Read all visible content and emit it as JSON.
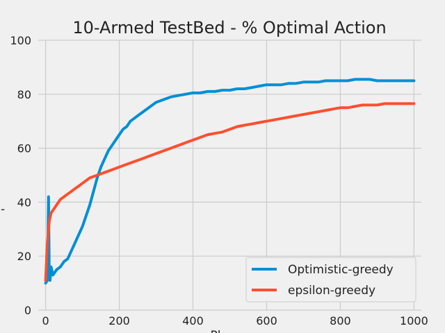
{
  "chart_data": {
    "type": "line",
    "title": "10-Armed TestBed - % Optimal Action",
    "xlabel": "Pl",
    "ylabel": "-",
    "xlim": [
      -20,
      1020
    ],
    "ylim": [
      0,
      100
    ],
    "xticks": [
      0,
      200,
      400,
      600,
      800,
      1000
    ],
    "yticks": [
      0,
      20,
      40,
      60,
      80,
      100
    ],
    "grid": true,
    "legend_position": "lower-right",
    "series": [
      {
        "name": "Optimistic-greedy",
        "color": "#008fd5",
        "x": [
          0,
          5,
          8,
          10,
          12,
          15,
          20,
          30,
          40,
          50,
          60,
          70,
          80,
          90,
          100,
          110,
          120,
          130,
          140,
          150,
          160,
          170,
          180,
          190,
          200,
          210,
          220,
          230,
          240,
          250,
          260,
          270,
          280,
          290,
          300,
          320,
          340,
          360,
          380,
          400,
          410,
          420,
          440,
          460,
          480,
          500,
          520,
          540,
          560,
          580,
          600,
          620,
          640,
          660,
          680,
          700,
          720,
          740,
          760,
          780,
          800,
          820,
          840,
          860,
          880,
          900,
          920,
          940,
          960,
          980,
          1000
        ],
        "values": [
          10,
          11,
          42,
          12,
          11,
          16,
          13,
          15,
          16,
          18,
          19,
          22,
          25,
          28,
          31,
          35,
          39,
          44,
          49,
          53,
          56,
          59,
          61,
          63,
          65,
          67,
          68,
          70,
          71,
          72,
          73,
          74,
          75,
          76,
          77,
          78,
          79,
          79.5,
          80,
          80.5,
          80.5,
          80.5,
          81,
          81,
          81.5,
          81.5,
          82,
          82,
          82.5,
          83,
          83.5,
          83.5,
          83.5,
          84,
          84,
          84.5,
          84.5,
          84.5,
          85,
          85,
          85,
          85,
          85.5,
          85.5,
          85.5,
          85,
          85,
          85,
          85,
          85,
          85
        ]
      },
      {
        "name": "epsilon-greedy",
        "color": "#fc4f30",
        "x": [
          0,
          5,
          10,
          15,
          20,
          30,
          40,
          50,
          60,
          70,
          80,
          90,
          100,
          120,
          140,
          160,
          180,
          200,
          220,
          240,
          260,
          280,
          300,
          320,
          340,
          360,
          380,
          400,
          420,
          440,
          460,
          480,
          500,
          520,
          540,
          560,
          580,
          600,
          620,
          640,
          660,
          680,
          700,
          720,
          740,
          760,
          780,
          800,
          820,
          840,
          860,
          880,
          900,
          920,
          940,
          960,
          980,
          1000
        ],
        "values": [
          11,
          25,
          33,
          36,
          37,
          39,
          41,
          42,
          43,
          44,
          45,
          46,
          47,
          49,
          50,
          51,
          52,
          53,
          54,
          55,
          56,
          57,
          58,
          59,
          60,
          61,
          62,
          63,
          64,
          65,
          65.5,
          66,
          67,
          68,
          68.5,
          69,
          69.5,
          70,
          70.5,
          71,
          71.5,
          72,
          72.5,
          73,
          73.5,
          74,
          74.5,
          75,
          75,
          75.5,
          76,
          76,
          76,
          76.5,
          76.5,
          76.5,
          76.5,
          76.5
        ]
      }
    ]
  }
}
